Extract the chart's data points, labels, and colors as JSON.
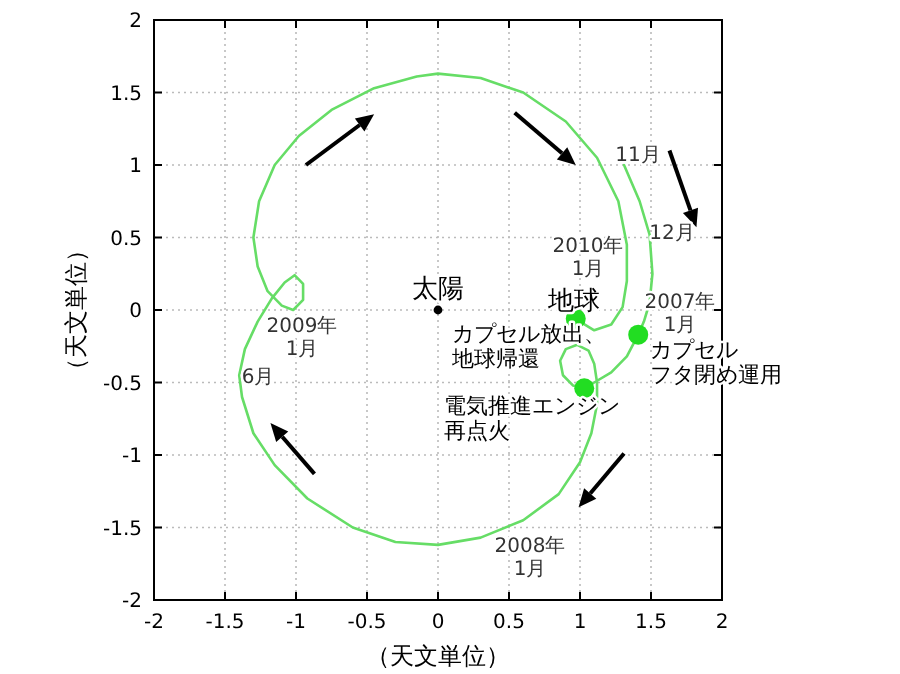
{
  "chart_data": {
    "type": "line",
    "xlabel": "（天文単位）",
    "ylabel": "（天文単位）",
    "xlim": [
      -2,
      2
    ],
    "ylim": [
      -2,
      2
    ],
    "xticks": [
      -2,
      -1.5,
      -1,
      -0.5,
      0,
      0.5,
      1,
      1.5,
      2
    ],
    "yticks": [
      -2,
      -1.5,
      -1,
      -0.5,
      0,
      0.5,
      1,
      1.5,
      2
    ],
    "grid": true,
    "series": [
      {
        "color": "#66dd66",
        "line_style": "solid",
        "x": [
          1.31,
          1.42,
          1.49,
          1.51,
          1.49,
          1.45,
          1.41,
          1.33,
          1.22,
          1.1,
          1.03,
          0.95,
          0.88,
          0.86,
          0.9,
          0.98,
          1.06,
          1.1,
          1.12,
          1.12,
          1.08,
          1.0,
          0.85,
          0.6,
          0.3,
          0.0,
          -0.3,
          -0.6,
          -0.92,
          -1.15,
          -1.3,
          -1.38,
          -1.4,
          -1.36,
          -1.27,
          -1.17,
          -1.08,
          -1.01,
          -0.95,
          -0.95,
          -1.02,
          -1.1,
          -1.2,
          -1.27,
          -1.3,
          -1.26,
          -1.15,
          -0.98,
          -0.75,
          -0.45,
          -0.15,
          0.0,
          0.3,
          0.6,
          0.9,
          1.12,
          1.27,
          1.33,
          1.33,
          1.3,
          1.22,
          1.1,
          1.0,
          0.97
        ],
        "values": [
          1.0,
          0.75,
          0.52,
          0.25,
          0.05,
          -0.08,
          -0.17,
          -0.32,
          -0.43,
          -0.5,
          -0.54,
          -0.52,
          -0.45,
          -0.35,
          -0.27,
          -0.24,
          -0.28,
          -0.37,
          -0.5,
          -0.65,
          -0.85,
          -1.05,
          -1.27,
          -1.45,
          -1.57,
          -1.62,
          -1.6,
          -1.5,
          -1.3,
          -1.07,
          -0.85,
          -0.6,
          -0.45,
          -0.27,
          -0.08,
          0.08,
          0.19,
          0.24,
          0.18,
          0.07,
          0.0,
          0.03,
          0.13,
          0.3,
          0.5,
          0.75,
          1.0,
          1.2,
          1.38,
          1.53,
          1.61,
          1.63,
          1.6,
          1.5,
          1.3,
          1.05,
          0.75,
          0.45,
          0.2,
          0.02,
          -0.1,
          -0.14,
          -0.08,
          -0.06
        ]
      },
      {
        "type": "scatter",
        "color": "#000000",
        "x": [
          0
        ],
        "values": [
          0
        ]
      },
      {
        "type": "scatter",
        "color": "#22dd22",
        "x": [
          0.97,
          1.41,
          1.03
        ],
        "values": [
          -0.06,
          -0.17,
          -0.54
        ]
      }
    ],
    "annotations": [
      "11月",
      "12月",
      "2007年1月",
      "2010年1月",
      "2008年1月",
      "6月",
      "2009年1月",
      "太陽",
      "地球",
      "カプセル放出、地球帰還",
      "カプセルフタ閉め運用",
      "電気推進エンジン再点火"
    ]
  }
}
